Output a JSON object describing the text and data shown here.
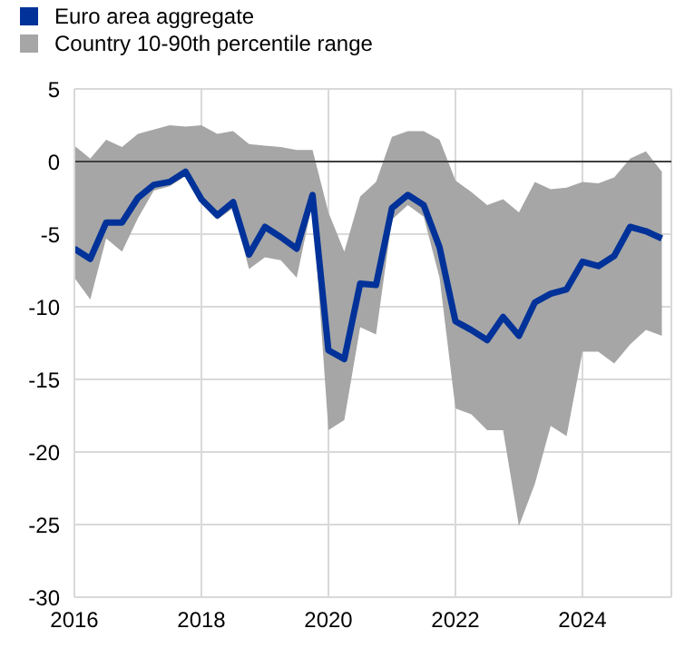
{
  "chart_data": {
    "type": "line",
    "x": [
      2016,
      2016.25,
      2016.5,
      2016.75,
      2017,
      2017.25,
      2017.5,
      2017.75,
      2018,
      2018.25,
      2018.5,
      2018.75,
      2019,
      2019.25,
      2019.5,
      2019.75,
      2020,
      2020.25,
      2020.5,
      2020.75,
      2021,
      2021.25,
      2021.5,
      2021.75,
      2022,
      2022.25,
      2022.5,
      2022.75,
      2023,
      2023.25,
      2023.5,
      2023.75,
      2024,
      2024.25,
      2024.5,
      2024.75,
      2025,
      2025.25
    ],
    "series": [
      {
        "name": "Euro area aggregate",
        "color": "#003299",
        "values": [
          -6.0,
          -6.7,
          -4.2,
          -4.2,
          -2.5,
          -1.6,
          -1.4,
          -0.7,
          -2.6,
          -3.7,
          -2.8,
          -6.4,
          -4.5,
          -5.2,
          -6.0,
          -2.3,
          -13.0,
          -13.6,
          -8.4,
          -8.5,
          -3.2,
          -2.3,
          -3.0,
          -5.9,
          -11.0,
          -11.6,
          -12.3,
          -10.7,
          -12.0,
          -9.7,
          -9.1,
          -8.8,
          -6.9,
          -7.2,
          -6.5,
          -4.5,
          -4.8,
          -5.3
        ],
        "lower": [
          -8.0,
          -9.5,
          -5.3,
          -6.2,
          -3.9,
          -2.0,
          -1.7,
          -1.0,
          -2.9,
          -4.0,
          -3.2,
          -7.4,
          -6.6,
          -6.8,
          -8.0,
          -2.8,
          -18.5,
          -17.8,
          -11.4,
          -11.9,
          -4.0,
          -3.0,
          -3.8,
          -8.0,
          -17.0,
          -17.4,
          -18.5,
          -18.5,
          -25.1,
          -22.2,
          -18.2,
          -18.9,
          -13.1,
          -13.1,
          -13.9,
          -12.6,
          -11.6,
          -12.0
        ],
        "upper": [
          1.1,
          0.2,
          1.5,
          1.0,
          1.9,
          2.2,
          2.5,
          2.4,
          2.5,
          1.9,
          2.1,
          1.2,
          1.1,
          1.0,
          0.8,
          0.8,
          -3.5,
          -6.2,
          -2.4,
          -1.4,
          1.7,
          2.1,
          2.1,
          1.5,
          -1.3,
          -2.1,
          -3.0,
          -2.6,
          -3.5,
          -1.4,
          -1.9,
          -1.8,
          -1.4,
          -1.5,
          -1.1,
          0.2,
          0.7,
          -0.7
        ]
      }
    ],
    "annotations": [
      "Country 10-90th percentile range"
    ],
    "xlim": [
      2016,
      2025.4
    ],
    "xticks": [
      2016,
      2018,
      2020,
      2022,
      2024
    ],
    "ylim": [
      -30,
      5
    ],
    "yticks": [
      5,
      0,
      -5,
      -10,
      -15,
      -20,
      -25,
      -30
    ],
    "grid": true,
    "legend": "top left",
    "marker": "none",
    "line_style": "solid",
    "ref_lines": [
      {
        "axis": "y",
        "value": 0,
        "color": "#404040"
      }
    ]
  }
}
